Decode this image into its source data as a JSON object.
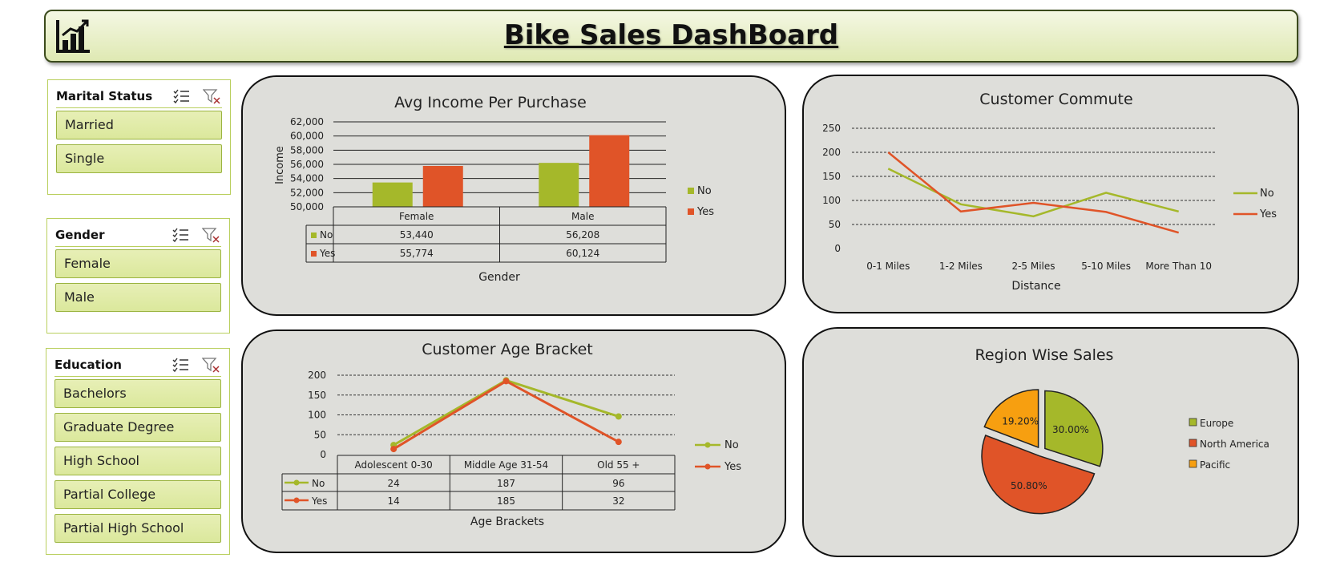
{
  "header": {
    "title": "Bike Sales DashBoard",
    "icon": "bar-chart-icon"
  },
  "slicers": {
    "marital": {
      "title": "Marital Status",
      "items": [
        "Married",
        "Single"
      ]
    },
    "gender": {
      "title": "Gender",
      "items": [
        "Female",
        "Male"
      ]
    },
    "education": {
      "title": "Education",
      "items": [
        "Bachelors",
        "Graduate Degree",
        "High School",
        "Partial College",
        "Partial High School"
      ]
    }
  },
  "colors": {
    "no": "#a5b82a",
    "yes": "#e05428",
    "pacific": "#f79f10",
    "panel_bg": "#dededa",
    "slicer_item": "#dfe9a6"
  },
  "chart_data": [
    {
      "type": "bar",
      "title": "Avg Income Per Purchase",
      "xlabel": "Gender",
      "ylabel": "Income",
      "categories": [
        "Female",
        "Male"
      ],
      "series": [
        {
          "name": "No",
          "values": [
            53440,
            56208
          ]
        },
        {
          "name": "Yes",
          "values": [
            55774,
            60124
          ]
        }
      ],
      "table_values": [
        [
          "53,440",
          "56,208"
        ],
        [
          "55,774",
          "60,124"
        ]
      ],
      "ylim": [
        50000,
        62000
      ],
      "yticks": [
        "50,000",
        "52,000",
        "54,000",
        "56,000",
        "58,000",
        "60,000",
        "62,000"
      ],
      "legend": "right",
      "grid": true
    },
    {
      "type": "line",
      "title": "Customer Commute",
      "xlabel": "Distance",
      "ylabel": "",
      "categories": [
        "0-1 Miles",
        "1-2 Miles",
        "2-5 Miles",
        "5-10 Miles",
        "More Than 10"
      ],
      "series": [
        {
          "name": "No",
          "values": [
            166,
            92,
            67,
            116,
            77
          ]
        },
        {
          "name": "Yes",
          "values": [
            200,
            77,
            95,
            76,
            33
          ]
        }
      ],
      "ylim": [
        0,
        250
      ],
      "yticks": [
        "0",
        "50",
        "100",
        "150",
        "200",
        "250"
      ],
      "legend": "right",
      "grid": true
    },
    {
      "type": "line",
      "title": "Customer Age Bracket",
      "xlabel": "Age Brackets",
      "ylabel": "",
      "categories": [
        "Adolescent 0-30",
        "Middle Age 31-54",
        "Old 55 +"
      ],
      "series": [
        {
          "name": "No",
          "values": [
            24,
            187,
            96
          ]
        },
        {
          "name": "Yes",
          "values": [
            14,
            185,
            32
          ]
        }
      ],
      "table_values": [
        [
          "24",
          "187",
          "96"
        ],
        [
          "14",
          "185",
          "32"
        ]
      ],
      "ylim": [
        0,
        200
      ],
      "yticks": [
        "0",
        "50",
        "100",
        "150",
        "200"
      ],
      "legend": "right",
      "grid": true
    },
    {
      "type": "pie",
      "title": "Region Wise Sales",
      "categories": [
        "Europe",
        "North America",
        "Pacific"
      ],
      "values": [
        30.0,
        50.8,
        19.2
      ],
      "labels": [
        "30.00%",
        "50.80%",
        "19.20%"
      ],
      "legend": "right"
    }
  ]
}
